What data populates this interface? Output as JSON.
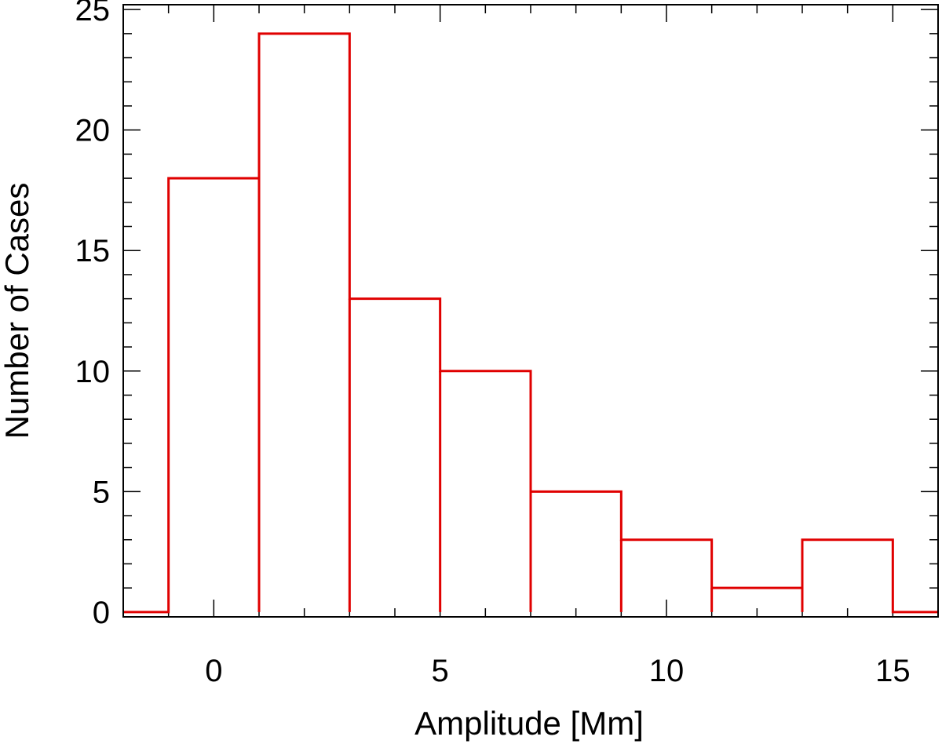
{
  "chart_data": {
    "type": "bar",
    "title": "",
    "xlabel": "Amplitude [Mm]",
    "ylabel": "Number of Cases",
    "xlim": [
      -2,
      16
    ],
    "ylim": [
      -0.2,
      25.2
    ],
    "x_ticks": [
      0,
      5,
      10,
      15
    ],
    "x_minor_step": 1,
    "y_ticks": [
      0,
      5,
      10,
      15,
      20,
      25
    ],
    "y_minor_step": 1,
    "bins": [
      {
        "x0": -1,
        "x1": 1,
        "value": 18
      },
      {
        "x0": 1,
        "x1": 3,
        "value": 24
      },
      {
        "x0": 3,
        "x1": 5,
        "value": 13
      },
      {
        "x0": 5,
        "x1": 7,
        "value": 10
      },
      {
        "x0": 7,
        "x1": 9,
        "value": 5
      },
      {
        "x0": 9,
        "x1": 11,
        "value": 3
      },
      {
        "x0": 11,
        "x1": 13,
        "value": 1
      },
      {
        "x0": 13,
        "x1": 15,
        "value": 3
      }
    ],
    "line_color": "#e00000",
    "axis_color": "#000000",
    "grid": false,
    "legend": "none"
  }
}
